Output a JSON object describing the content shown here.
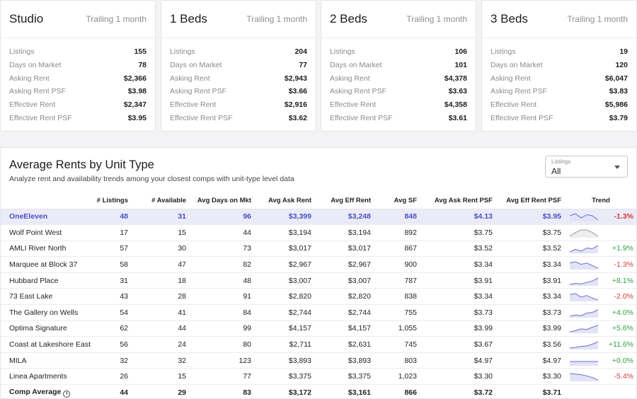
{
  "cards": [
    {
      "title": "Studio",
      "period": "Trailing 1 month",
      "metrics": [
        {
          "label": "Listings",
          "value": "155"
        },
        {
          "label": "Days on Market",
          "value": "78"
        },
        {
          "label": "Asking Rent",
          "value": "$2,366"
        },
        {
          "label": "Asking Rent PSF",
          "value": "$3.98"
        },
        {
          "label": "Effective Rent",
          "value": "$2,347"
        },
        {
          "label": "Effective Rent PSF",
          "value": "$3.95"
        }
      ]
    },
    {
      "title": "1 Beds",
      "period": "Trailing 1 month",
      "metrics": [
        {
          "label": "Listings",
          "value": "204"
        },
        {
          "label": "Days on Market",
          "value": "77"
        },
        {
          "label": "Asking Rent",
          "value": "$2,943"
        },
        {
          "label": "Asking Rent PSF",
          "value": "$3.66"
        },
        {
          "label": "Effective Rent",
          "value": "$2,916"
        },
        {
          "label": "Effective Rent PSF",
          "value": "$3.62"
        }
      ]
    },
    {
      "title": "2 Beds",
      "period": "Trailing 1 month",
      "metrics": [
        {
          "label": "Listings",
          "value": "106"
        },
        {
          "label": "Days on Market",
          "value": "101"
        },
        {
          "label": "Asking Rent",
          "value": "$4,378"
        },
        {
          "label": "Asking Rent PSF",
          "value": "$3.63"
        },
        {
          "label": "Effective Rent",
          "value": "$4,358"
        },
        {
          "label": "Effective Rent PSF",
          "value": "$3.61"
        }
      ]
    },
    {
      "title": "3 Beds",
      "period": "Trailing 1 month",
      "metrics": [
        {
          "label": "Listings",
          "value": "19"
        },
        {
          "label": "Days on Market",
          "value": "120"
        },
        {
          "label": "Asking Rent",
          "value": "$6,047"
        },
        {
          "label": "Asking Rent PSF",
          "value": "$3.83"
        },
        {
          "label": "Effective Rent",
          "value": "$5,986"
        },
        {
          "label": "Effective Rent PSF",
          "value": "$3.79"
        }
      ]
    }
  ],
  "panel": {
    "title": "Average Rents by Unit Type",
    "subtitle": "Analyze rent and availability trends among your closest comps with unit-type level data",
    "filter": {
      "label": "Listings",
      "value": "All"
    }
  },
  "table": {
    "columns": [
      "",
      "# Listings",
      "# Available",
      "Avg Days on Mkt",
      "Avg Ask Rent",
      "Avg Eff Rent",
      "Avg SF",
      "Avg Ask Rent PSF",
      "Avg Eff Rent PSF",
      "Trend"
    ],
    "rows": [
      {
        "name": "OneEleven",
        "cells": [
          "48",
          "31",
          "96",
          "$3,399",
          "$3,248",
          "848",
          "$4.13",
          "$3.95"
        ],
        "trend": "-1.3%",
        "dir": "down",
        "highlight": true,
        "spark": [
          3,
          3.2,
          2.8,
          3.1,
          3,
          2.6
        ]
      },
      {
        "name": "Wolf Point West",
        "cells": [
          "17",
          "15",
          "44",
          "$3,194",
          "$3,194",
          "892",
          "$3.75",
          "$3.75"
        ],
        "trend": "",
        "dir": "flat",
        "spark": [
          1,
          4,
          6,
          6,
          4,
          1
        ]
      },
      {
        "name": "AMLI River North",
        "cells": [
          "57",
          "30",
          "73",
          "$3,017",
          "$3,017",
          "867",
          "$3.52",
          "$3.52"
        ],
        "trend": "+1.9%",
        "dir": "up",
        "spark": [
          3,
          3.4,
          3.1,
          3.6,
          3.5,
          4
        ]
      },
      {
        "name": "Marquee at Block 37",
        "cells": [
          "58",
          "47",
          "82",
          "$2,967",
          "$2,967",
          "900",
          "$3.34",
          "$3.34"
        ],
        "trend": "-1.3%",
        "dir": "down",
        "spark": [
          3.2,
          3.3,
          3.1,
          3.2,
          3,
          2.8
        ]
      },
      {
        "name": "Hubbard Place",
        "cells": [
          "31",
          "18",
          "48",
          "$3,007",
          "$3,007",
          "787",
          "$3.91",
          "$3.91"
        ],
        "trend": "+8.1%",
        "dir": "up",
        "spark": [
          2.6,
          2.8,
          2.7,
          3,
          3.3,
          3.9
        ]
      },
      {
        "name": "73 East Lake",
        "cells": [
          "43",
          "28",
          "91",
          "$2,820",
          "$2,820",
          "838",
          "$3.34",
          "$3.34"
        ],
        "trend": "-2.0%",
        "dir": "down",
        "spark": [
          3.6,
          3.7,
          3.3,
          3.5,
          3.2,
          3
        ]
      },
      {
        "name": "The Gallery on Wells",
        "cells": [
          "54",
          "41",
          "84",
          "$2,744",
          "$2,744",
          "755",
          "$3.73",
          "$3.73"
        ],
        "trend": "+4.0%",
        "dir": "up",
        "spark": [
          2.8,
          3,
          2.9,
          3.3,
          3.4,
          3.8
        ]
      },
      {
        "name": "Optima Signature",
        "cells": [
          "62",
          "44",
          "99",
          "$4,157",
          "$4,157",
          "1,055",
          "$3.99",
          "$3.99"
        ],
        "trend": "+5.6%",
        "dir": "up",
        "spark": [
          2.7,
          2.9,
          3.2,
          3.1,
          3.5,
          3.8
        ]
      },
      {
        "name": "Coast at Lakeshore East",
        "cells": [
          "56",
          "24",
          "80",
          "$2,711",
          "$2,631",
          "745",
          "$3.67",
          "$3.56"
        ],
        "trend": "+11.6%",
        "dir": "up",
        "spark": [
          2.4,
          2.6,
          2.9,
          3,
          3.5,
          4.2
        ]
      },
      {
        "name": "MILA",
        "cells": [
          "32",
          "32",
          "123",
          "$3,893",
          "$3,893",
          "803",
          "$4.97",
          "$4.97"
        ],
        "trend": "+0.0%",
        "dir": "up",
        "spark": [
          3,
          3,
          3,
          3,
          3,
          3
        ]
      },
      {
        "name": "Linea Apartments",
        "cells": [
          "26",
          "15",
          "77",
          "$3,375",
          "$3,375",
          "1,023",
          "$3.30",
          "$3.30"
        ],
        "trend": "-5.4%",
        "dir": "down",
        "spark": [
          3.8,
          3.7,
          3.6,
          3.4,
          3.1,
          2.7
        ]
      }
    ],
    "total": {
      "name": "Comp Average",
      "cells": [
        "44",
        "29",
        "83",
        "$3,172",
        "$3,161",
        "866",
        "$3.72",
        "$3.71"
      ]
    }
  },
  "colors": {
    "accent": "#4b50c2",
    "up": "#2e9e3f",
    "down": "#d23c3c",
    "highlight_bg": "#ebebf8",
    "spark_line": "#6a6fd0",
    "spark_fill": "#e2e3f7"
  }
}
